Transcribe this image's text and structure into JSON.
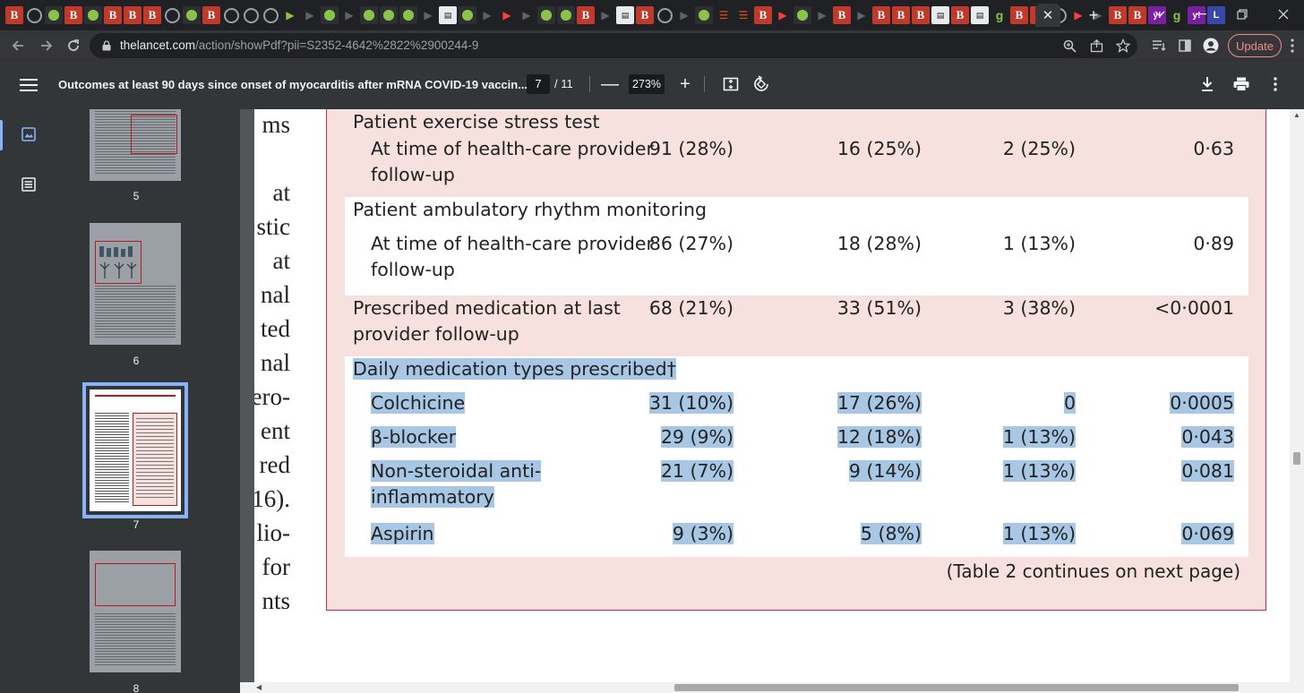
{
  "browser": {
    "tab_favicons": [
      "B",
      "C",
      "G",
      "B",
      "G",
      "B",
      "B",
      "B",
      "C",
      "G",
      "B",
      "C",
      "C",
      "C",
      "P",
      "D",
      "G",
      "D",
      "G",
      "G",
      "G",
      "D",
      "W",
      "G",
      "D",
      "Y",
      "D",
      "G",
      "G",
      "B",
      "D",
      "W",
      "B",
      "C",
      "D",
      "G",
      "O",
      "O",
      "B",
      "Y",
      "G",
      "D",
      "B",
      "D",
      "B",
      "B",
      "B",
      "W",
      "B",
      "W",
      "g9",
      "B",
      "B",
      "C",
      "Y",
      "D",
      "B",
      "B",
      "V",
      "g9",
      "V",
      "L"
    ],
    "active_tab_close": "✕",
    "new_tab": "+",
    "url_host": "thelancet.com",
    "url_path": "/action/showPdf?pii=S2352-4642%2822%2900244-9",
    "update_label": "Update"
  },
  "pdf_toolbar": {
    "title": "Outcomes at least 90 days since onset of myocarditis after mRNA COVID-19 vaccin...",
    "current_page": "7",
    "total_pages": "/ 11",
    "zoom": "273%",
    "zoom_out": "—",
    "zoom_in": "+"
  },
  "thumbnails": [
    {
      "num": "5"
    },
    {
      "num": "6"
    },
    {
      "num": "7"
    },
    {
      "num": "8"
    }
  ],
  "left_column_fragments": [
    "ms",
    "at",
    "stic",
    "at",
    "nal",
    "ted",
    "nal",
    "ero-",
    "ent",
    "red",
    "16).",
    "lio-",
    "for",
    "nts"
  ],
  "table": {
    "rows": [
      {
        "label": "Patient exercise stress test",
        "indent": false,
        "bg": "pink",
        "values": []
      },
      {
        "label": "At time of health-care provider",
        "label2": "follow-up",
        "indent": true,
        "bg": "pink",
        "values": [
          "91 (28%)",
          "16 (25%)",
          "2 (25%)",
          "0·63"
        ]
      },
      {
        "label": "Patient ambulatory rhythm monitoring",
        "indent": false,
        "bg": "white",
        "values": []
      },
      {
        "label": "At time of health-care provider",
        "label2": "follow-up",
        "indent": true,
        "bg": "white",
        "values": [
          "86 (27%)",
          "18 (28%)",
          "1 (13%)",
          "0·89"
        ]
      },
      {
        "label": "Prescribed medication at last",
        "label2": "provider follow-up",
        "indent": false,
        "bg": "pink",
        "values": [
          "68 (21%)",
          "33 (51%)",
          "3 (38%)",
          "<0·0001"
        ]
      },
      {
        "label": "Daily medication types prescribed†",
        "indent": false,
        "bg": "white",
        "values": []
      },
      {
        "label": "Colchicine",
        "indent": true,
        "bg": "white",
        "values": [
          "31 (10%)",
          "17 (26%)",
          "0",
          "0·0005"
        ]
      },
      {
        "label": "β-blocker",
        "indent": true,
        "bg": "white",
        "values": [
          "29 (9%)",
          "12 (18%)",
          "1 (13%)",
          "0·043"
        ]
      },
      {
        "label": "Non-steroidal anti-",
        "label2": "inflammatory",
        "indent": true,
        "bg": "white",
        "values": [
          "21 (7%)",
          "9 (14%)",
          "1 (13%)",
          "0·081"
        ]
      },
      {
        "label": "Aspirin",
        "indent": true,
        "bg": "white",
        "values": [
          "9 (3%)",
          "5 (8%)",
          "1 (13%)",
          "0·069"
        ]
      }
    ],
    "continues_note": "(Table 2 continues on next page)"
  }
}
